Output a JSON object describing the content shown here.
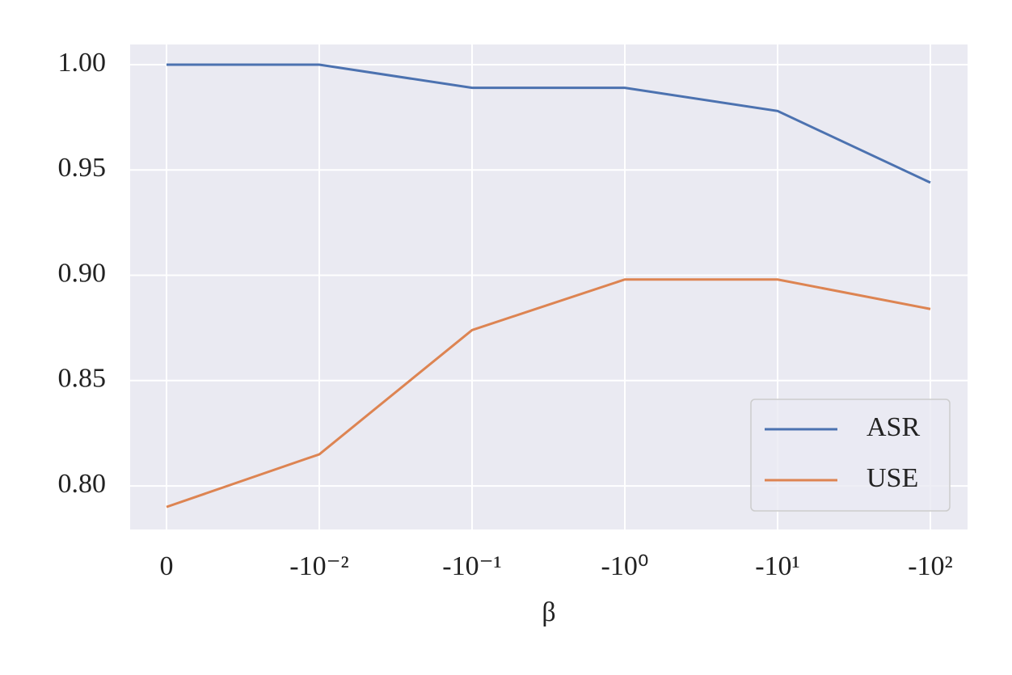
{
  "chart_data": {
    "type": "line",
    "x_label": "β",
    "categories": [
      "0",
      "-10⁻²",
      "-10⁻¹",
      "-10⁰",
      "-10¹",
      "-10²"
    ],
    "series": [
      {
        "name": "ASR",
        "color": "#4c72b0",
        "values": [
          1.0,
          1.0,
          0.989,
          0.989,
          0.978,
          0.944
        ]
      },
      {
        "name": "USE",
        "color": "#dd8452",
        "values": [
          0.79,
          0.815,
          0.874,
          0.898,
          0.898,
          0.884
        ]
      }
    ],
    "ylim": [
      0.7793,
      1.0096
    ],
    "yticks": [
      {
        "value": 0.8,
        "label": "0.80"
      },
      {
        "value": 0.85,
        "label": "0.85"
      },
      {
        "value": 0.9,
        "label": "0.90"
      },
      {
        "value": 0.95,
        "label": "0.95"
      },
      {
        "value": 1.0,
        "label": "1.00"
      }
    ],
    "grid": true,
    "legend": "lower right"
  }
}
